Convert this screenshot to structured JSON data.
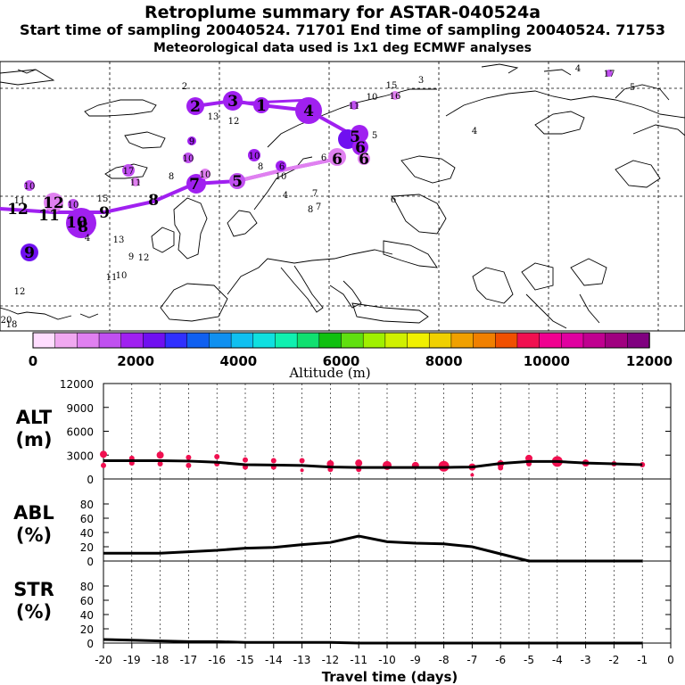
{
  "header": {
    "title": "Retroplume summary for ASTAR-040524a",
    "subtitle": "Start time of sampling 20040524. 71701     End time of sampling 20040524. 71753",
    "met_note": "Meteorological data used is 1x1 deg ECMWF analyses"
  },
  "colorbar": {
    "label": "Altitude (m)",
    "ticks": [
      "0",
      "2000",
      "4000",
      "6000",
      "8000",
      "10000",
      "12000"
    ],
    "colors": [
      "#ffddff",
      "#f0a8f0",
      "#e080f0",
      "#c050f0",
      "#a020f0",
      "#7010f0",
      "#3030ff",
      "#1060f0",
      "#1090f0",
      "#10c0f0",
      "#10e0e0",
      "#10f0b0",
      "#10e070",
      "#10c010",
      "#60e010",
      "#a0f000",
      "#d0f000",
      "#f0f000",
      "#f0d000",
      "#f0a000",
      "#f08000",
      "#f05000",
      "#f01050",
      "#f00090",
      "#e000a0",
      "#c00090",
      "#a00080",
      "#800080"
    ]
  },
  "map": {
    "cluster_labels": [
      {
        "t": "1",
        "x": 293,
        "y": 118
      },
      {
        "t": "2",
        "x": 219,
        "y": 119
      },
      {
        "t": "3",
        "x": 261,
        "y": 113
      },
      {
        "t": "4",
        "x": 346,
        "y": 124
      },
      {
        "t": "5",
        "x": 398,
        "y": 153
      },
      {
        "t": "6",
        "x": 378,
        "y": 178
      },
      {
        "t": "7",
        "x": 218,
        "y": 206
      },
      {
        "t": "5",
        "x": 266,
        "y": 203
      },
      {
        "t": "8",
        "x": 172,
        "y": 224
      },
      {
        "t": "9",
        "x": 117,
        "y": 238
      },
      {
        "t": "10",
        "x": 86,
        "y": 249
      },
      {
        "t": "11",
        "x": 55,
        "y": 241
      },
      {
        "t": "12",
        "x": 20,
        "y": 234
      },
      {
        "t": "12",
        "x": 60,
        "y": 227
      },
      {
        "t": "9",
        "x": 33,
        "y": 283
      },
      {
        "t": "8",
        "x": 93,
        "y": 254
      },
      {
        "t": "6",
        "x": 404,
        "y": 165
      },
      {
        "t": "6",
        "x": 408,
        "y": 178
      }
    ],
    "small_labels": [
      {
        "t": "2",
        "x": 207,
        "y": 96
      },
      {
        "t": "3",
        "x": 472,
        "y": 89
      },
      {
        "t": "4",
        "x": 648,
        "y": 76
      },
      {
        "t": "17",
        "x": 683,
        "y": 82
      },
      {
        "t": "5",
        "x": 709,
        "y": 97
      },
      {
        "t": "15",
        "x": 439,
        "y": 95
      },
      {
        "t": "16",
        "x": 443,
        "y": 107
      },
      {
        "t": "10",
        "x": 417,
        "y": 108
      },
      {
        "t": "11",
        "x": 397,
        "y": 118
      },
      {
        "t": "13",
        "x": 239,
        "y": 130
      },
      {
        "t": "12",
        "x": 262,
        "y": 135
      },
      {
        "t": "5",
        "x": 420,
        "y": 151
      },
      {
        "t": "4",
        "x": 532,
        "y": 146
      },
      {
        "t": "9",
        "x": 215,
        "y": 158
      },
      {
        "t": "10",
        "x": 211,
        "y": 177
      },
      {
        "t": "10",
        "x": 285,
        "y": 174
      },
      {
        "t": "8",
        "x": 292,
        "y": 186
      },
      {
        "t": "6",
        "x": 316,
        "y": 186
      },
      {
        "t": "10",
        "x": 315,
        "y": 197
      },
      {
        "t": "6",
        "x": 363,
        "y": 176
      },
      {
        "t": "17",
        "x": 144,
        "y": 191
      },
      {
        "t": "11",
        "x": 152,
        "y": 204
      },
      {
        "t": "8",
        "x": 192,
        "y": 197
      },
      {
        "t": "10",
        "x": 230,
        "y": 195
      },
      {
        "t": "10",
        "x": 33,
        "y": 208
      },
      {
        "t": "15",
        "x": 115,
        "y": 222
      },
      {
        "t": "11",
        "x": 22,
        "y": 224
      },
      {
        "t": "10",
        "x": 82,
        "y": 229
      },
      {
        "t": "4",
        "x": 320,
        "y": 218
      },
      {
        "t": "7",
        "x": 353,
        "y": 216
      },
      {
        "t": "8",
        "x": 348,
        "y": 234
      },
      {
        "t": "7",
        "x": 357,
        "y": 231
      },
      {
        "t": "6",
        "x": 441,
        "y": 223
      },
      {
        "t": "4",
        "x": 98,
        "y": 266
      },
      {
        "t": "13",
        "x": 133,
        "y": 268
      },
      {
        "t": "9",
        "x": 147,
        "y": 287
      },
      {
        "t": "12",
        "x": 161,
        "y": 288
      },
      {
        "t": "11",
        "x": 125,
        "y": 310
      },
      {
        "t": "10",
        "x": 136,
        "y": 308
      },
      {
        "t": "12",
        "x": 22,
        "y": 326
      },
      {
        "t": "20",
        "x": 7,
        "y": 358
      },
      {
        "t": "18",
        "x": 13,
        "y": 363
      }
    ]
  },
  "chart_data": [
    {
      "type": "line",
      "title": "ALT (m)",
      "label_top": "ALT",
      "label_bottom": "(m)",
      "xlabel": "Travel time (days)",
      "x": [
        -20,
        -19,
        -18,
        -17,
        -16,
        -15,
        -14,
        -13,
        -12,
        -11,
        -10,
        -9,
        -8,
        -7,
        -6,
        -5,
        -4,
        -3,
        -2,
        -1
      ],
      "values": [
        2300,
        2300,
        2300,
        2250,
        2100,
        1800,
        1750,
        1700,
        1500,
        1450,
        1450,
        1450,
        1450,
        1500,
        1950,
        2200,
        2200,
        2000,
        1900,
        1800
      ],
      "ylim": [
        0,
        12000
      ],
      "yticks": [
        "0",
        "3000",
        "6000",
        "9000",
        "12000"
      ],
      "dots": [
        {
          "x": -20,
          "y": 3100,
          "s": 4
        },
        {
          "x": -20,
          "y": 1700,
          "s": 3
        },
        {
          "x": -19,
          "y": 2600,
          "s": 3
        },
        {
          "x": -19,
          "y": 2000,
          "s": 3
        },
        {
          "x": -18,
          "y": 3000,
          "s": 4
        },
        {
          "x": -18,
          "y": 1900,
          "s": 3
        },
        {
          "x": -17,
          "y": 2700,
          "s": 3
        },
        {
          "x": -17,
          "y": 1700,
          "s": 3
        },
        {
          "x": -16,
          "y": 2800,
          "s": 3
        },
        {
          "x": -16,
          "y": 1900,
          "s": 3
        },
        {
          "x": -15,
          "y": 2400,
          "s": 3
        },
        {
          "x": -15,
          "y": 1500,
          "s": 3
        },
        {
          "x": -14,
          "y": 2300,
          "s": 3
        },
        {
          "x": -14,
          "y": 1500,
          "s": 3
        },
        {
          "x": -13,
          "y": 2300,
          "s": 3
        },
        {
          "x": -13,
          "y": 1100,
          "s": 2
        },
        {
          "x": -12,
          "y": 1900,
          "s": 4
        },
        {
          "x": -12,
          "y": 1200,
          "s": 3
        },
        {
          "x": -11,
          "y": 2000,
          "s": 4
        },
        {
          "x": -11,
          "y": 1200,
          "s": 3
        },
        {
          "x": -10,
          "y": 1700,
          "s": 5
        },
        {
          "x": -9,
          "y": 1700,
          "s": 4
        },
        {
          "x": -8,
          "y": 1600,
          "s": 6
        },
        {
          "x": -7,
          "y": 1500,
          "s": 4
        },
        {
          "x": -7,
          "y": 500,
          "s": 2
        },
        {
          "x": -6,
          "y": 1900,
          "s": 4
        },
        {
          "x": -6,
          "y": 1400,
          "s": 3
        },
        {
          "x": -5,
          "y": 2600,
          "s": 4
        },
        {
          "x": -5,
          "y": 1900,
          "s": 3
        },
        {
          "x": -4,
          "y": 2200,
          "s": 6
        },
        {
          "x": -3,
          "y": 2000,
          "s": 4
        },
        {
          "x": -2,
          "y": 1900,
          "s": 3
        },
        {
          "x": -1,
          "y": 1800,
          "s": 3
        }
      ]
    },
    {
      "type": "line",
      "title": "ABL (%)",
      "label_top": "ABL",
      "label_bottom": "(%)",
      "x": [
        -20,
        -19,
        -18,
        -17,
        -16,
        -15,
        -14,
        -13,
        -12,
        -11,
        -10,
        -9,
        -8,
        -7,
        -6,
        -5,
        -4,
        -3,
        -2,
        -1
      ],
      "values": [
        11,
        11,
        11,
        13,
        15,
        18,
        19,
        23,
        26,
        35,
        27,
        25,
        24,
        20,
        10,
        0,
        0,
        0,
        0,
        0
      ],
      "ylim": [
        0,
        100
      ],
      "yticks": [
        "0",
        "20",
        "40",
        "60",
        "80"
      ]
    },
    {
      "type": "line",
      "title": "STR (%)",
      "label_top": "STR",
      "label_bottom": "(%)",
      "x": [
        -20,
        -19,
        -18,
        -17,
        -16,
        -15,
        -14,
        -13,
        -12,
        -11,
        -10,
        -9,
        -8,
        -7,
        -6,
        -5,
        -4,
        -3,
        -2,
        -1
      ],
      "values": [
        5,
        4,
        3,
        2,
        2,
        1,
        1,
        1,
        1,
        0,
        0,
        0,
        0,
        0,
        0,
        0,
        0,
        0,
        0,
        0
      ],
      "ylim": [
        0,
        100
      ],
      "yticks": [
        "0",
        "20",
        "40",
        "60",
        "80"
      ]
    }
  ],
  "x_axis": {
    "ticks": [
      "-20",
      "-19",
      "-18",
      "-17",
      "-16",
      "-15",
      "-14",
      "-13",
      "-12",
      "-11",
      "-10",
      "-9",
      "-8",
      "-7",
      "-6",
      "-5",
      "-4",
      "-3",
      "-2",
      "-1",
      "0"
    ],
    "label": "Travel time (days)"
  }
}
